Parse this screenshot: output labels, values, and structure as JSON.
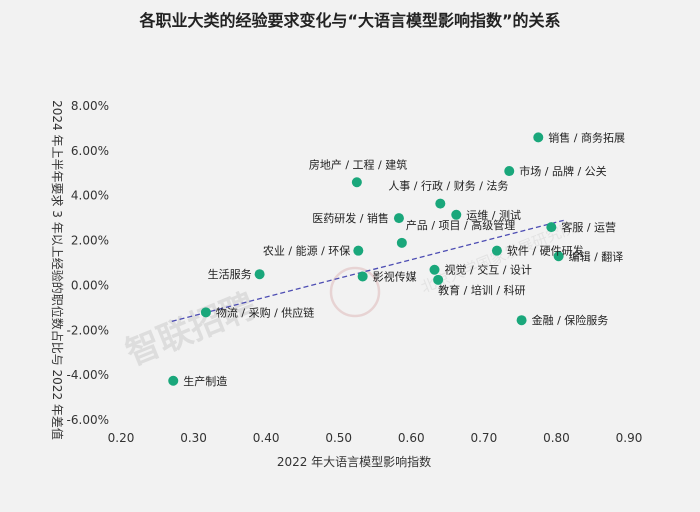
{
  "chart_data": {
    "type": "scatter",
    "title": "各职业大类的经验要求变化与“大语言模型影响指数”的关系",
    "xlabel": "2022 年大语言模型影响指数",
    "ylabel": "2024 年上半年要求 3 年以上经验的职位数占比与 2022 年差值",
    "xlim": [
      0.2,
      0.9
    ],
    "ylim": [
      -6.0,
      8.0
    ],
    "x_ticks": [
      "0.20",
      "0.30",
      "0.40",
      "0.50",
      "0.60",
      "0.70",
      "0.80",
      "0.90"
    ],
    "y_ticks": [
      "-6.00%",
      "-4.00%",
      "-2.00%",
      "0.00%",
      "2.00%",
      "4.00%",
      "6.00%",
      "8.00%"
    ],
    "grid": false,
    "point_color": "#1aa77b",
    "trendline_color": "#4d4db3",
    "trendline": {
      "x": [
        0.27,
        0.81
      ],
      "y": [
        -1.6,
        2.9
      ]
    },
    "points": [
      {
        "label": "销售 / 商务拓展",
        "x": 0.775,
        "y": 6.6
      },
      {
        "label": "市场 / 品牌 / 公关",
        "x": 0.735,
        "y": 5.1
      },
      {
        "label": "房地产 / 工程 / 建筑",
        "x": 0.525,
        "y": 4.6
      },
      {
        "label": "人事 / 行政 / 财务 / 法务",
        "x": 0.64,
        "y": 3.65
      },
      {
        "label": "运维 / 测试",
        "x": 0.662,
        "y": 3.15
      },
      {
        "label": "医药研发 / 销售",
        "x": 0.583,
        "y": 3.0
      },
      {
        "label": "客服 / 运营",
        "x": 0.793,
        "y": 2.6
      },
      {
        "label": "产品 / 项目 / 高级管理",
        "x": 0.587,
        "y": 1.9
      },
      {
        "label": "农业 / 能源 / 环保",
        "x": 0.527,
        "y": 1.55
      },
      {
        "label": "软件 / 硬件研发",
        "x": 0.718,
        "y": 1.55
      },
      {
        "label": "编辑 / 翻译",
        "x": 0.803,
        "y": 1.3
      },
      {
        "label": "视觉 / 交互 / 设计",
        "x": 0.632,
        "y": 0.7
      },
      {
        "label": "生活服务",
        "x": 0.391,
        "y": 0.5
      },
      {
        "label": "影视传媒",
        "x": 0.533,
        "y": 0.4
      },
      {
        "label": "教育 / 培训 / 科研",
        "x": 0.637,
        "y": 0.25
      },
      {
        "label": "物流 / 采购 / 供应链",
        "x": 0.317,
        "y": -1.2
      },
      {
        "label": "金融 / 保险服务",
        "x": 0.752,
        "y": -1.55
      },
      {
        "label": "生产制造",
        "x": 0.272,
        "y": -4.25
      }
    ]
  },
  "watermark": {
    "text": "智联招聘",
    "secondary": "北京大学国家发展研究院"
  }
}
